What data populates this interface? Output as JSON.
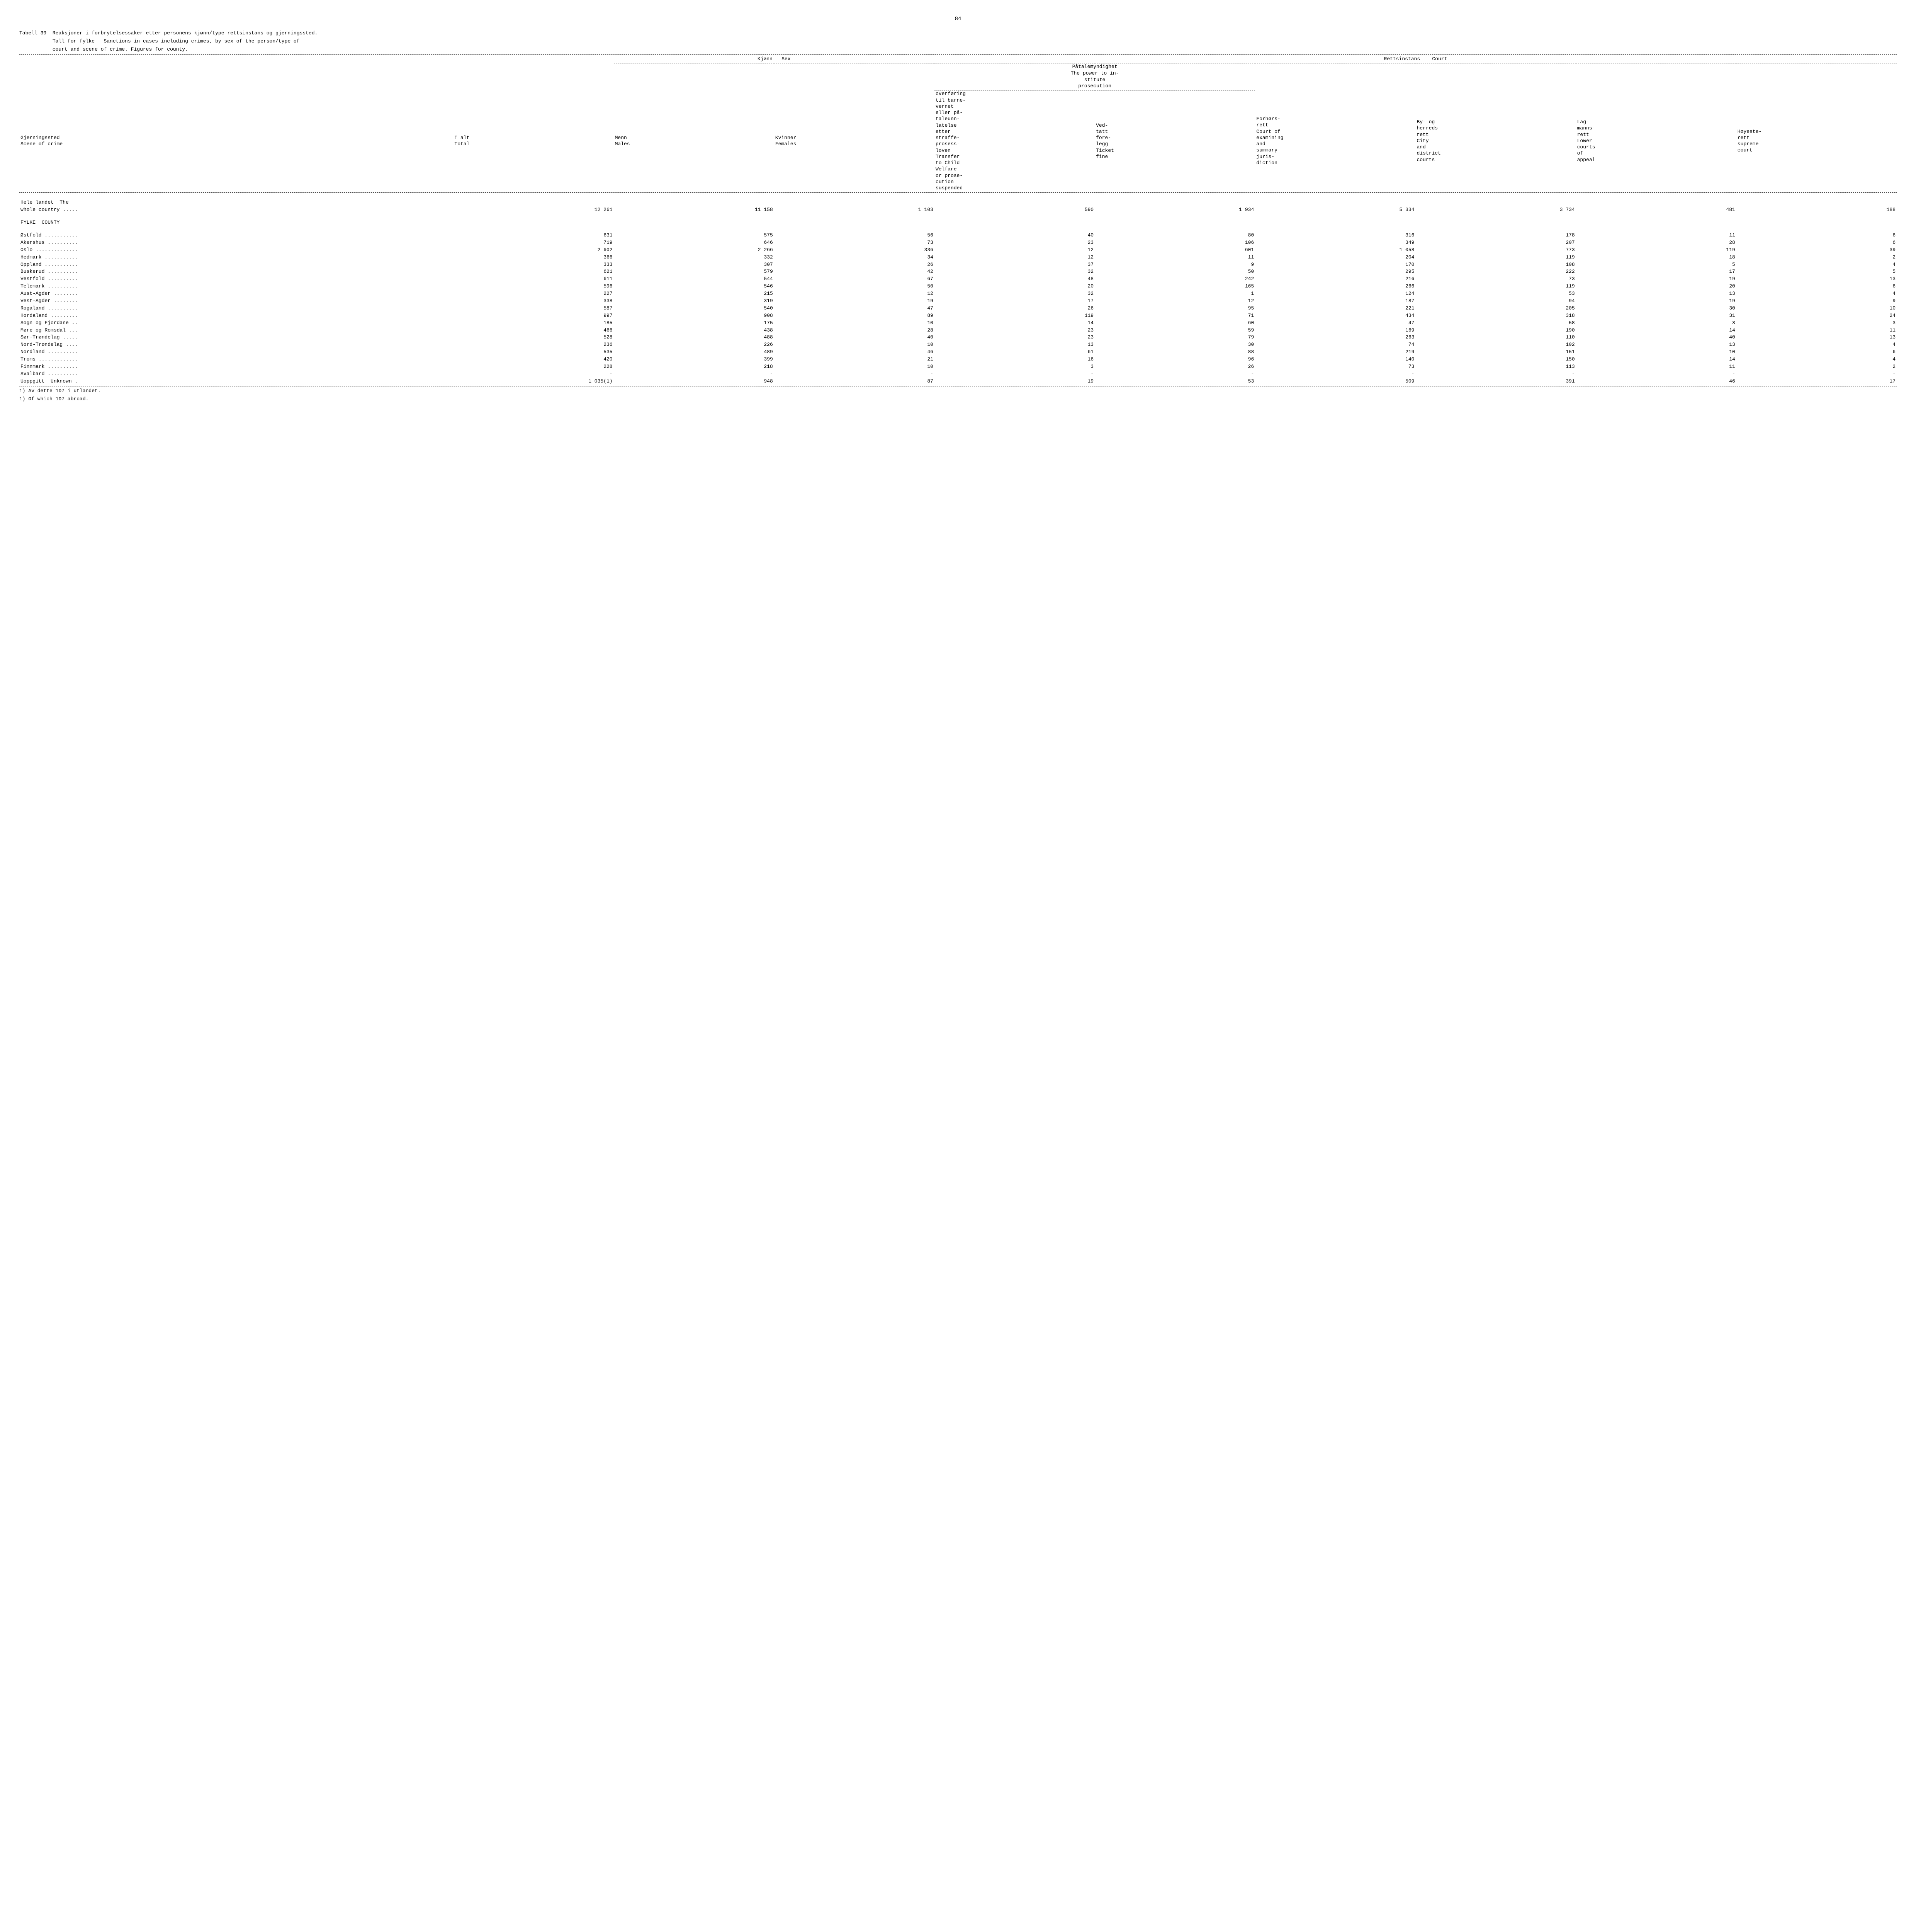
{
  "page_number": "84",
  "table_label": "Tabell 39  ",
  "title_line1": "Reaksjoner i forbrytelsessaker etter personens kjønn/type rettsinstans og gjerningssted.",
  "title_line2": "Tall for fylke   Sanctions in cases including crimes, by sex of the person/type of",
  "title_line3": "court and scene of crime. Figures for county.",
  "group_kjonn": "Kjønn   Sex",
  "group_rett": "Rettsinstans    Court",
  "sub_patale_line": "Påtalemyndighet\nThe power to in-\nstitute\nprosecution",
  "col_scene": "Gjerningssted\nScene of crime",
  "col_total": "I alt\nTotal",
  "col_menn": "Menn\nMales",
  "col_kvinner": "Kvinner\nFemales",
  "col_transfer": "overføring\ntil barne-\nvernet\neller på-\ntaleunn-\nlatelse\netter\nstraffe-\nprosess-\nloven\nTransfer\nto Child\nWelfare\nor prose-\ncution\nsuspended",
  "col_ticket": "Ved-\ntatt\nfore-\nlegg\nTicket\nfine",
  "col_summary": "Forhørs-\nrett\nCourt of\nexamining\nand\nsummary\njuris-\ndiction",
  "col_district": "By- og\nherreds-\nrett\nCity\nand\ndistrict\ncourts",
  "col_appeal": "Lag-\nmanns-\nrett\nLower\ncourts\nof\nappeal",
  "col_supreme": "Høyeste-\nrett\nsupreme\ncourt",
  "section_whole_country_label": "Hele landet  The",
  "section_whole_country_label2": "whole country .....",
  "section_fylke": "FYLKE  COUNTY",
  "whole_country": [
    "12 261",
    "11 158",
    "1 103",
    "590",
    "1 934",
    "5 334",
    "3 734",
    "481",
    "188"
  ],
  "rows": [
    {
      "label": "Østfold ...........",
      "v": [
        "631",
        "575",
        "56",
        "40",
        "80",
        "316",
        "178",
        "11",
        "6"
      ]
    },
    {
      "label": "Akershus ..........",
      "v": [
        "719",
        "646",
        "73",
        "23",
        "106",
        "349",
        "207",
        "28",
        "6"
      ]
    },
    {
      "label": "Oslo ..............",
      "v": [
        "2 602",
        "2 266",
        "336",
        "12",
        "601",
        "1 058",
        "773",
        "119",
        "39"
      ]
    },
    {
      "label": "Hedmark ...........",
      "v": [
        "366",
        "332",
        "34",
        "12",
        "11",
        "204",
        "119",
        "18",
        "2"
      ]
    },
    {
      "label": "Oppland ...........",
      "v": [
        "333",
        "307",
        "26",
        "37",
        "9",
        "170",
        "108",
        "5",
        "4"
      ]
    },
    {
      "label": "Buskerud ..........",
      "v": [
        "621",
        "579",
        "42",
        "32",
        "50",
        "295",
        "222",
        "17",
        "5"
      ]
    },
    {
      "label": "Vestfold ..........",
      "v": [
        "611",
        "544",
        "67",
        "48",
        "242",
        "216",
        "73",
        "19",
        "13"
      ]
    },
    {
      "label": "Telemark ..........",
      "v": [
        "596",
        "546",
        "50",
        "20",
        "165",
        "266",
        "119",
        "20",
        "6"
      ]
    },
    {
      "label": "Aust-Agder ........",
      "v": [
        "227",
        "215",
        "12",
        "32",
        "1",
        "124",
        "53",
        "13",
        "4"
      ]
    },
    {
      "label": "Vest-Agder ........",
      "v": [
        "338",
        "319",
        "19",
        "17",
        "12",
        "187",
        "94",
        "19",
        "9"
      ]
    },
    {
      "label": "Rogaland ..........",
      "v": [
        "587",
        "540",
        "47",
        "26",
        "95",
        "221",
        "205",
        "30",
        "10"
      ]
    },
    {
      "label": "Hordaland .........",
      "v": [
        "997",
        "908",
        "89",
        "119",
        "71",
        "434",
        "318",
        "31",
        "24"
      ]
    },
    {
      "label": "Sogn og Fjordane ..",
      "v": [
        "185",
        "175",
        "10",
        "14",
        "60",
        "47",
        "58",
        "3",
        "3"
      ]
    },
    {
      "label": "Møre og Romsdal ...",
      "v": [
        "466",
        "438",
        "28",
        "23",
        "59",
        "169",
        "190",
        "14",
        "11"
      ]
    },
    {
      "label": "Sør-Trøndelag .....",
      "v": [
        "528",
        "488",
        "40",
        "23",
        "79",
        "263",
        "110",
        "40",
        "13"
      ]
    },
    {
      "label": "Nord-Trøndelag ....",
      "v": [
        "236",
        "226",
        "10",
        "13",
        "30",
        "74",
        "102",
        "13",
        "4"
      ]
    },
    {
      "label": "Nordland ..........",
      "v": [
        "535",
        "489",
        "46",
        "61",
        "88",
        "219",
        "151",
        "10",
        "6"
      ]
    },
    {
      "label": "Troms .............",
      "v": [
        "420",
        "399",
        "21",
        "16",
        "96",
        "140",
        "150",
        "14",
        "4"
      ]
    },
    {
      "label": "Finnmark ..........",
      "v": [
        "228",
        "218",
        "10",
        "3",
        "26",
        "73",
        "113",
        "11",
        "2"
      ]
    },
    {
      "label": "Svalbard ..........",
      "v": [
        "-",
        "-",
        "-",
        "-",
        "-",
        "-",
        "-",
        "-",
        "-"
      ]
    },
    {
      "label": "Uoppgitt  Unknown .",
      "v": [
        "1 035(1)",
        "948",
        "87",
        "19",
        "53",
        "509",
        "391",
        "46",
        "17"
      ]
    }
  ],
  "footnote1": "1) Av dette 107 i utlandet.",
  "footnote2": "1) Of which 107 abroad."
}
